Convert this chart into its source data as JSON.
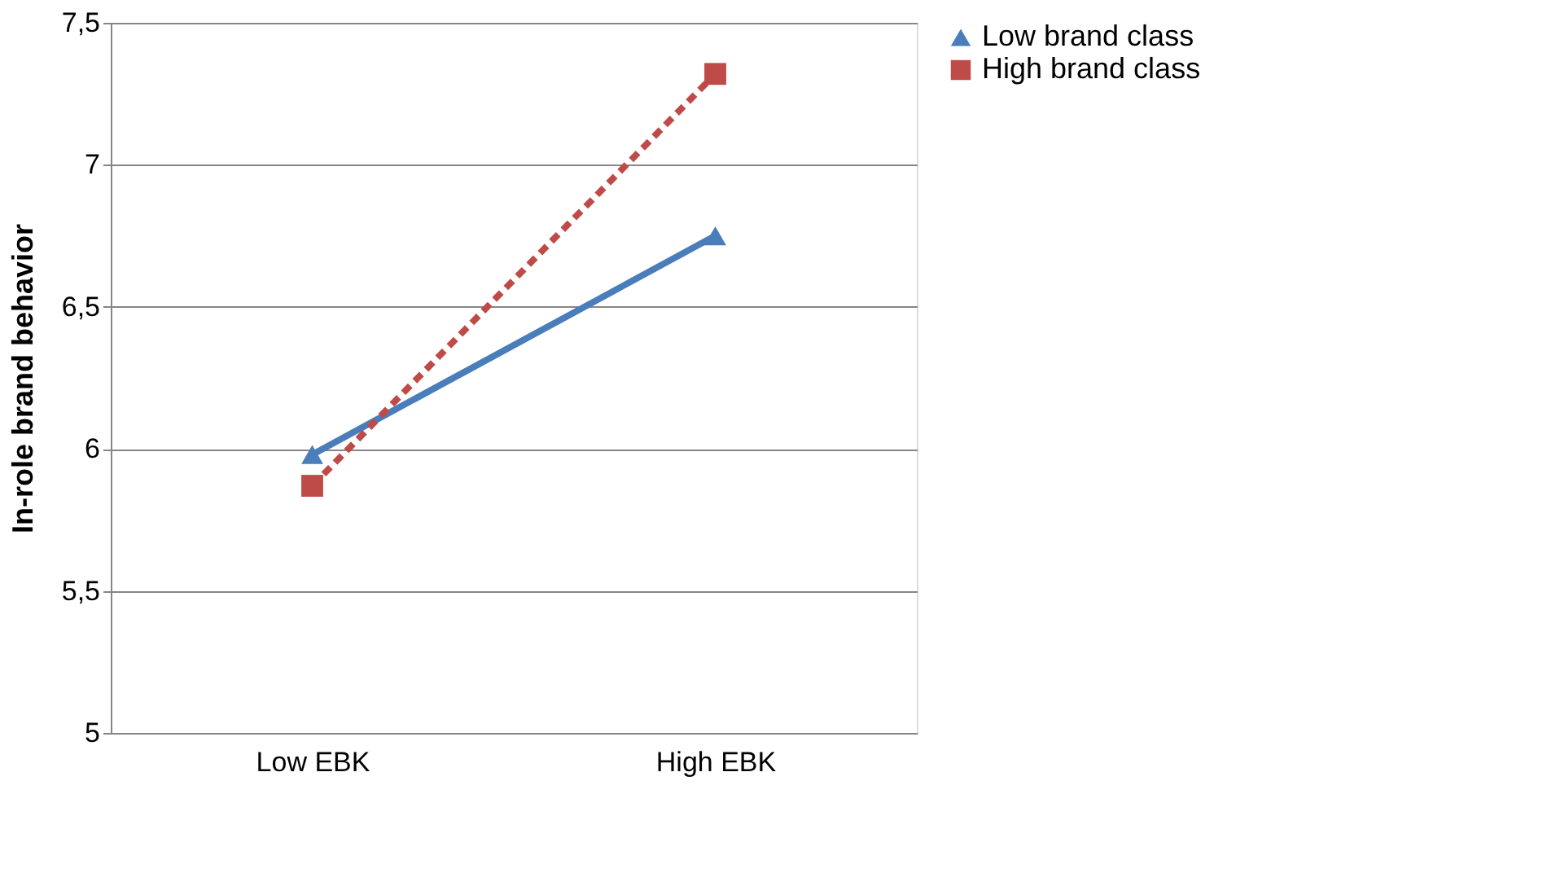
{
  "chart_data": {
    "type": "line",
    "ylabel": "In-role brand behavior",
    "categories": [
      "Low EBK",
      "High EBK"
    ],
    "series": [
      {
        "name": "Low brand class",
        "color": "#4a7ebb",
        "values": [
          5.98,
          6.75
        ],
        "marker": "triangle",
        "line_style": "solid"
      },
      {
        "name": "High brand class",
        "color": "#be4b48",
        "values": [
          5.87,
          7.32
        ],
        "marker": "square",
        "line_style": "dashed"
      }
    ],
    "ylim": [
      5,
      7.5
    ],
    "yticks": [
      5,
      {
        "value": 5.5,
        "label": "5,5"
      },
      6,
      {
        "value": 6.5,
        "label": "6,5"
      },
      7,
      {
        "value": 7.5,
        "label": "7,5"
      }
    ],
    "grid": "y",
    "legend": "right"
  }
}
